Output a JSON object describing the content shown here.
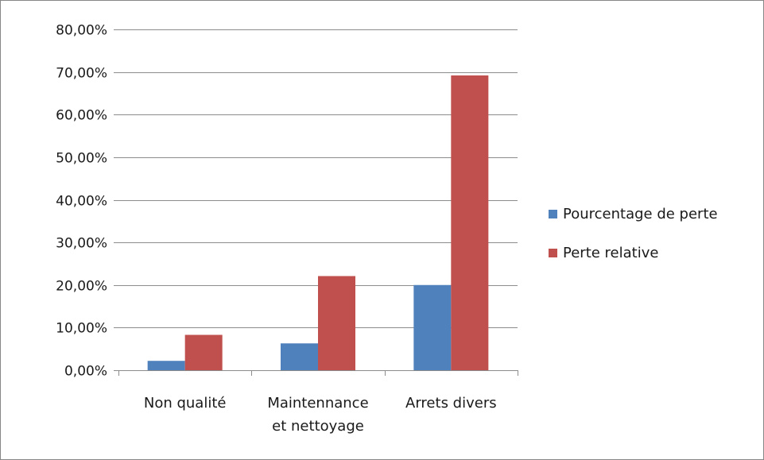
{
  "chart_data": {
    "type": "bar",
    "categories": [
      "Non qualité",
      "Maintennance et nettoyage",
      "Arrets divers"
    ],
    "category_lines": [
      [
        "Non qualité"
      ],
      [
        "Maintennance",
        "et nettoyage"
      ],
      [
        "Arrets divers"
      ]
    ],
    "series": [
      {
        "name": "Pourcentage de perte",
        "values": [
          0.022,
          0.063,
          0.2
        ],
        "color": "#4f81bd"
      },
      {
        "name": "Perte relative",
        "values": [
          0.083,
          0.221,
          0.692
        ],
        "color": "#c0504d"
      }
    ],
    "y_ticks": [
      "0,00%",
      "10,00%",
      "20,00%",
      "30,00%",
      "40,00%",
      "50,00%",
      "60,00%",
      "70,00%",
      "80,00%"
    ],
    "ylim": [
      0,
      0.8
    ],
    "grid": true,
    "legend_position": "right",
    "gridline_color": "#8c8c8c"
  }
}
